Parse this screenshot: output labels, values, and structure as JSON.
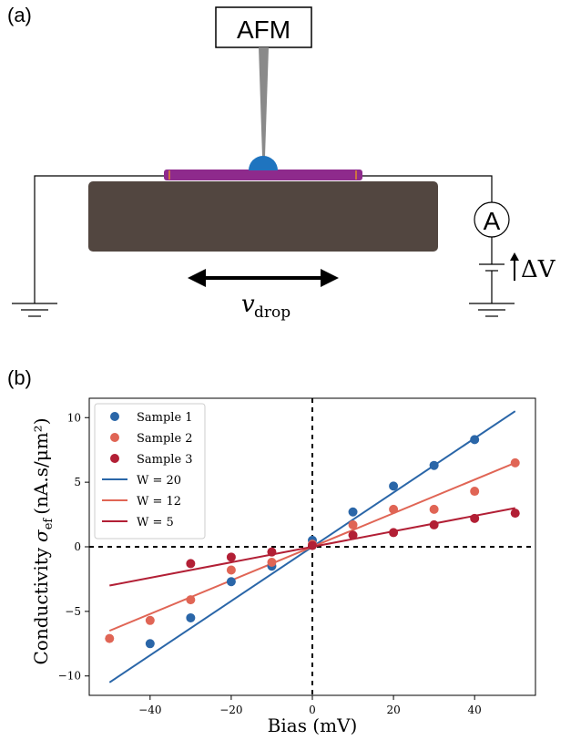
{
  "panel_a": {
    "label": "(a)",
    "afm_label": "AFM",
    "ammeter_label": "A",
    "voltage_label": "ΔV",
    "velocity_symbol": "v",
    "velocity_subscript": "drop"
  },
  "panel_b": {
    "label": "(b)"
  },
  "colors": {
    "sample1": "#2a66a8",
    "sample2": "#e06555",
    "sample3": "#b21f35",
    "substrate": "#524640",
    "strip": "#8e2a8c",
    "drop": "#1f74bf",
    "tip": "#8a8a8a"
  },
  "chart_data": {
    "type": "scatter",
    "xlabel": "Bias (mV)",
    "ylabel_text": "Conductivity",
    "ylabel_symbol": "σ",
    "ylabel_subscript": "ef",
    "ylabel_units": "(nA.s/μm²)",
    "xlim": [
      -55,
      55
    ],
    "ylim": [
      -11.5,
      11.5
    ],
    "xticks": [
      -40,
      -20,
      0,
      20,
      40
    ],
    "xtick_labels": [
      "−40",
      "−20",
      "0",
      "20",
      "40"
    ],
    "yticks": [
      -10,
      -5,
      0,
      5,
      10
    ],
    "ytick_labels": [
      "−10",
      "−5",
      "0",
      "5",
      "10"
    ],
    "grid": false,
    "legend_position": "top-left",
    "reference_lines": {
      "x": 0,
      "y": 0,
      "style": "dashed"
    },
    "series": [
      {
        "name": "Sample 1",
        "kind": "points",
        "color_key": "sample1",
        "x": [
          -40,
          -30,
          -20,
          -10,
          0,
          10,
          20,
          30,
          40
        ],
        "y": [
          -7.5,
          -5.5,
          -2.7,
          -1.5,
          0.5,
          2.7,
          4.7,
          6.3,
          8.3
        ]
      },
      {
        "name": "Sample 2",
        "kind": "points",
        "color_key": "sample2",
        "x": [
          -50,
          -40,
          -30,
          -20,
          -10,
          0,
          10,
          20,
          30,
          40,
          50
        ],
        "y": [
          -7.1,
          -5.7,
          -4.1,
          -1.8,
          -1.2,
          0.2,
          1.7,
          2.9,
          2.9,
          4.3,
          6.5
        ]
      },
      {
        "name": "Sample 3",
        "kind": "points",
        "color_key": "sample3",
        "x": [
          -30,
          -20,
          -10,
          0,
          10,
          20,
          30,
          40,
          50
        ],
        "y": [
          -1.3,
          -0.8,
          -0.4,
          0.1,
          0.9,
          1.1,
          1.7,
          2.2,
          2.6
        ]
      },
      {
        "name": "W = 20",
        "kind": "line",
        "color_key": "sample1",
        "slope": 0.21
      },
      {
        "name": "W = 12",
        "kind": "line",
        "color_key": "sample2",
        "slope": 0.13
      },
      {
        "name": "W = 5",
        "kind": "line",
        "color_key": "sample3",
        "slope": 0.06
      }
    ],
    "fit_x_range": [
      -50,
      50
    ]
  }
}
